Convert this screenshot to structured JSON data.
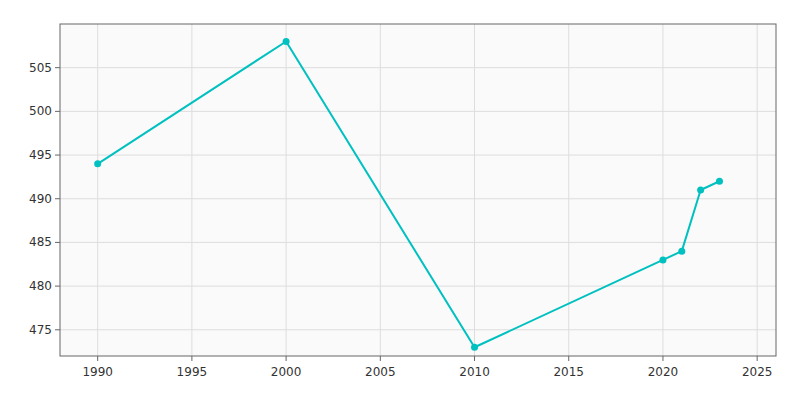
{
  "chart_data": {
    "type": "line",
    "x": [
      1990,
      2000,
      2010,
      2020,
      2021,
      2022,
      2023
    ],
    "values": [
      494,
      508,
      473,
      483,
      484,
      491,
      492
    ],
    "color": "#00C0C0",
    "marker": "circle",
    "xlim": [
      1988,
      2026
    ],
    "ylim": [
      472,
      510
    ],
    "xticks": [
      1990,
      1995,
      2000,
      2005,
      2010,
      2015,
      2020,
      2025
    ],
    "yticks": [
      475,
      480,
      485,
      490,
      495,
      500,
      505
    ],
    "grid": true
  }
}
